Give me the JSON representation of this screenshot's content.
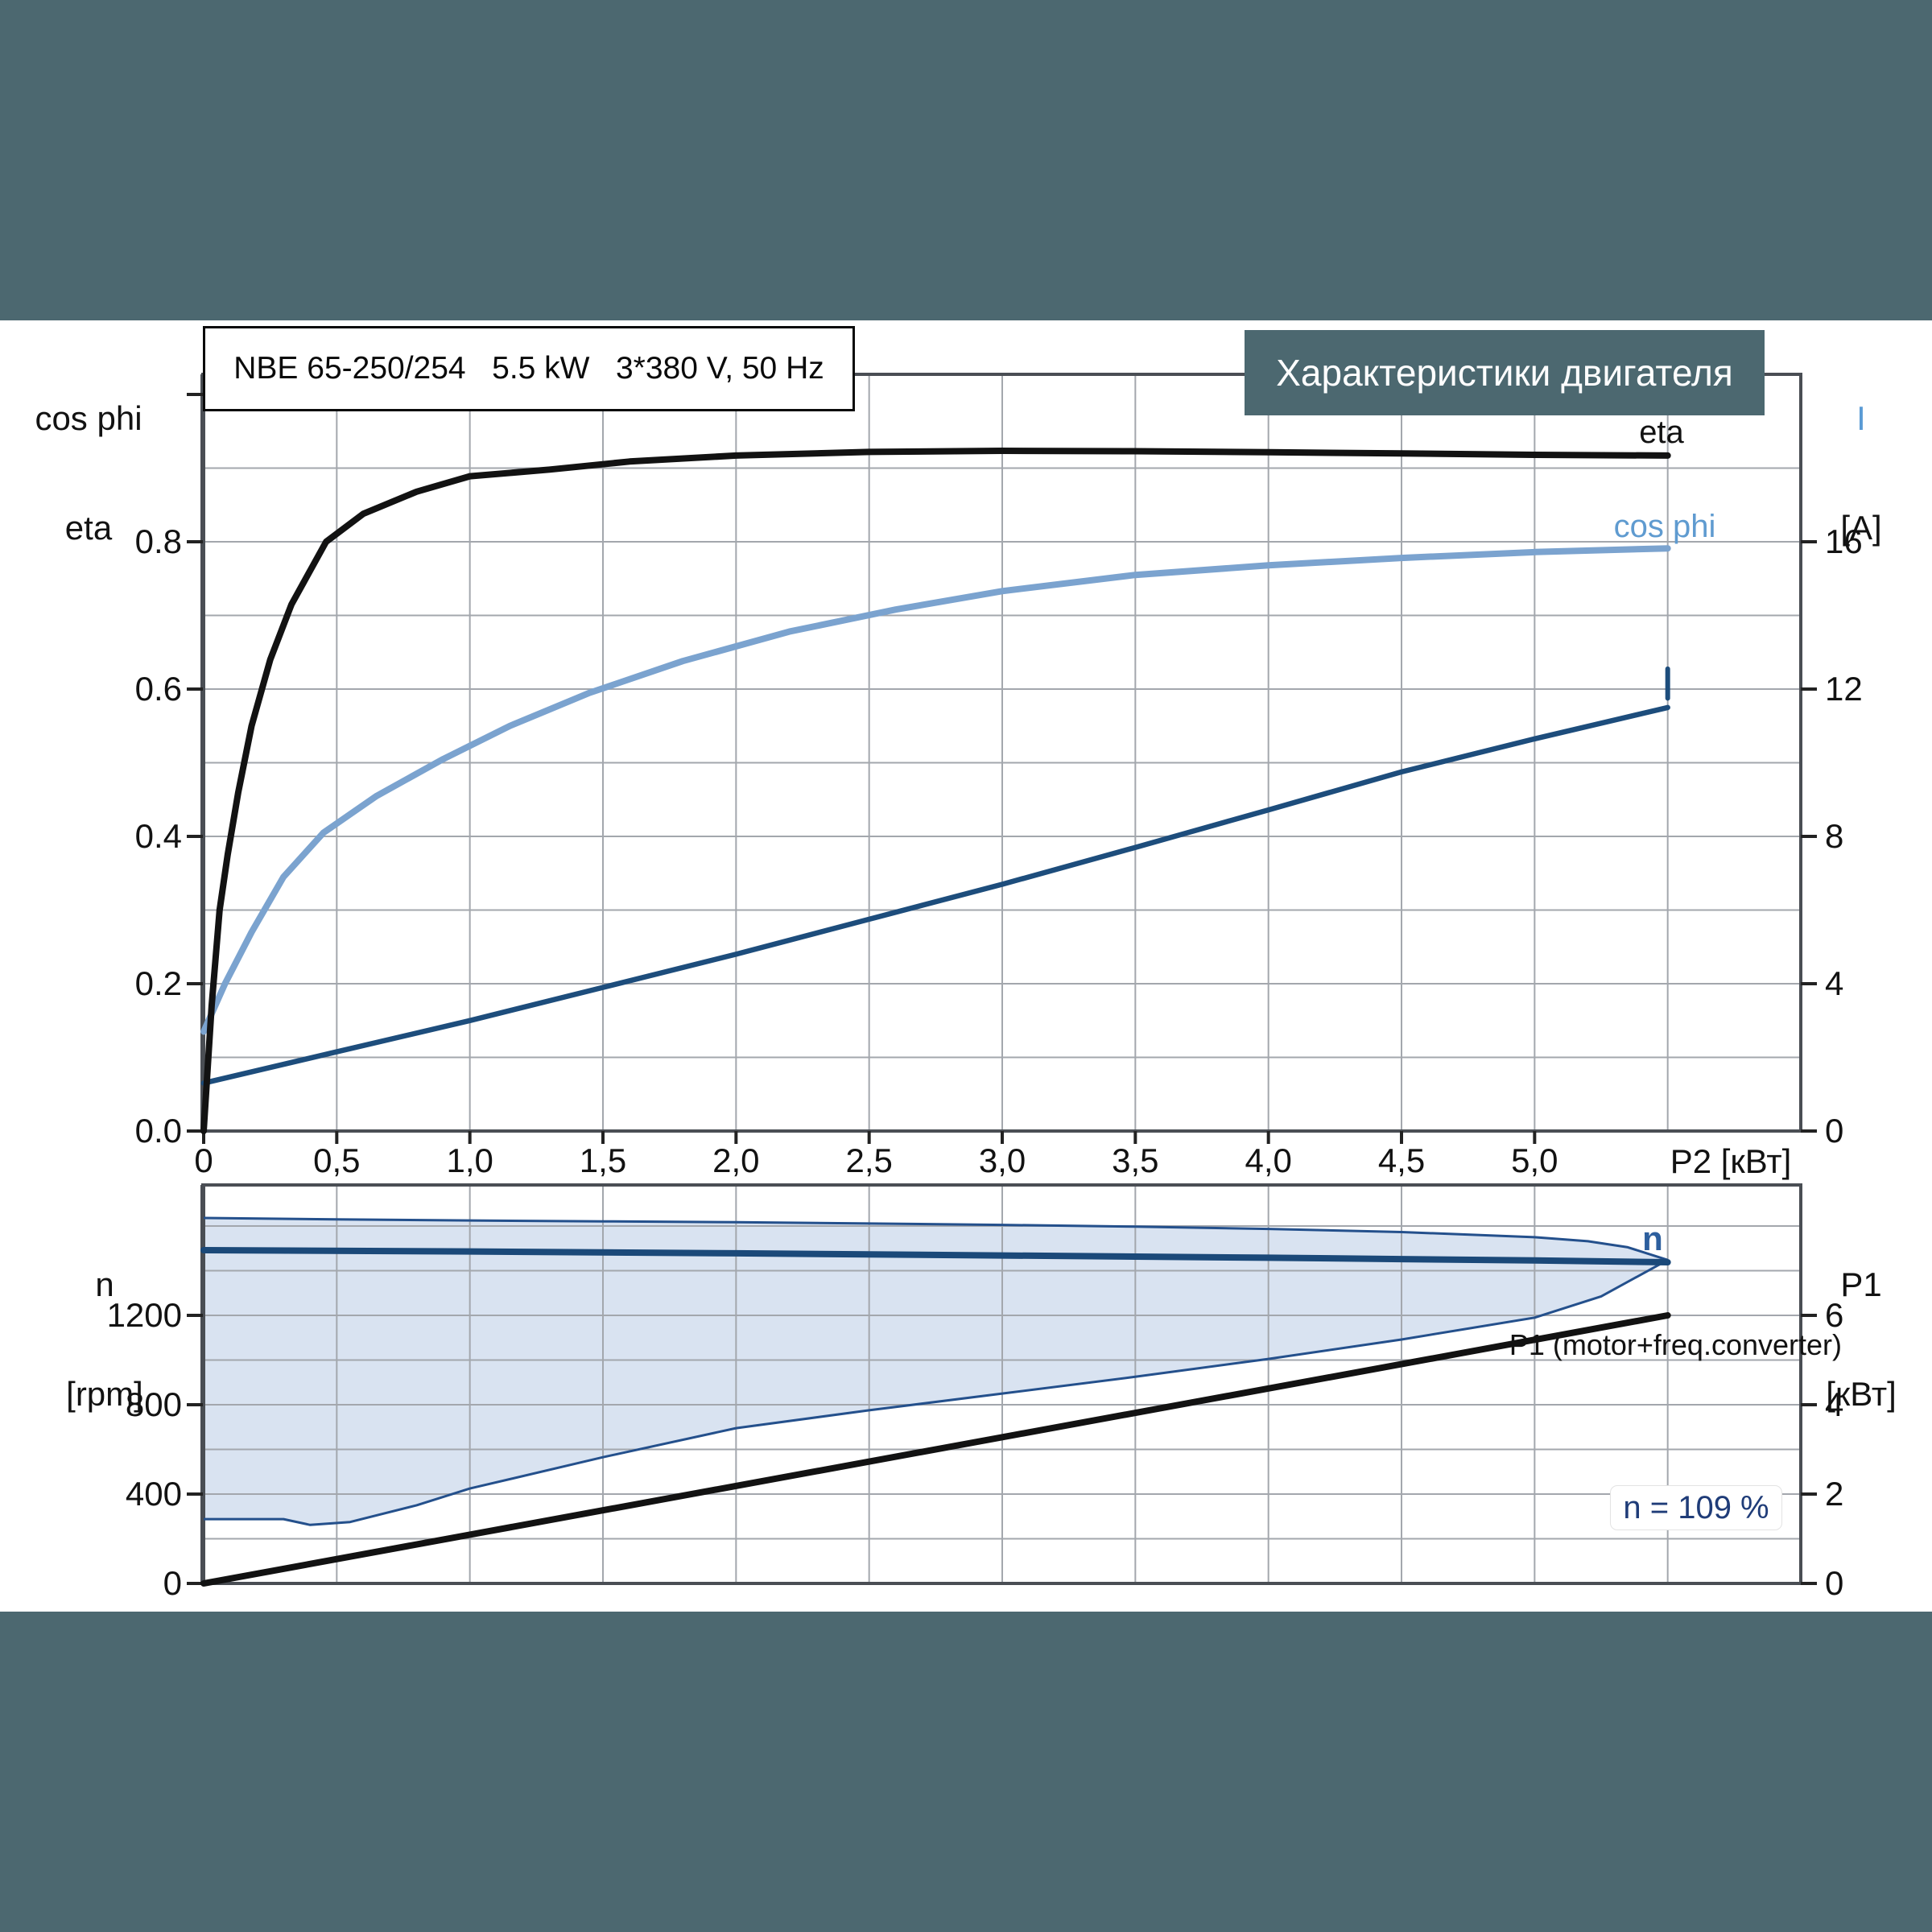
{
  "page": {
    "background": "#ffffff",
    "band_color": "#4C6870",
    "chart_title": "Характеристики двигателя",
    "model_title": "NBE 65-250/254   5.5 kW   3*380 V, 50 Hz"
  },
  "axes_headers": {
    "top_left_line1": "cos phi",
    "top_left_line2": "eta",
    "top_right_line1": "I",
    "top_right_line2": "[A]",
    "bottom_left_line1": "n",
    "bottom_left_line2": "[rpm]",
    "bottom_right_line1": "P1",
    "bottom_right_line2": "[кВт]",
    "x_axis_title": "P2 [кВт]"
  },
  "annotations": {
    "eta_label": "eta",
    "cos_phi_label": "cos phi",
    "n_label": "n",
    "p1_label": "P1 (motor+freq.converter)",
    "speed_note": "n = 109 %"
  },
  "colors": {
    "eta": "#121212",
    "cos_phi": "#7ba3cf",
    "cos_phi_label": "#5f9bd0",
    "current": "#1d4d7c",
    "speed": "#1b4979",
    "p1": "#121212",
    "band_fill": "#d9e3f1",
    "band_edge": "#24508c",
    "grid": "#a3a7ad",
    "frame": "#4a4e54",
    "tick": "#222222",
    "text": "#121212",
    "right_axis_i": "#5b9bd5",
    "n_label_color": "#2d5f9e",
    "note_text": "#1f3c78"
  },
  "chart_data": [
    {
      "type": "line",
      "name": "motor-efficiency-current-chart",
      "title": "Характеристики двигателя",
      "xlabel": "P2 [кВт]",
      "x_range": [
        0,
        6
      ],
      "x_grid_step": 0.5,
      "x_ticks": [
        [
          "0",
          0
        ],
        [
          "0,5",
          0.5
        ],
        [
          "1,0",
          1
        ],
        [
          "1,5",
          1.5
        ],
        [
          "2,0",
          2
        ],
        [
          "2,5",
          2.5
        ],
        [
          "3,0",
          3
        ],
        [
          "3,5",
          3.5
        ],
        [
          "4,0",
          4
        ],
        [
          "4,5",
          4.5
        ],
        [
          "5,0",
          5
        ]
      ],
      "y_left": {
        "range": [
          0,
          1.027
        ],
        "grid_step": 0.1,
        "ticks": [
          [
            "0.0",
            0
          ],
          [
            "0.2",
            0.2
          ],
          [
            "0.4",
            0.4
          ],
          [
            "0.6",
            0.6
          ],
          [
            "0.8",
            0.8
          ],
          [
            "",
            1.0
          ]
        ]
      },
      "y_right": {
        "label": "I [A]",
        "range": [
          0,
          16.43
        ],
        "ticks": [
          [
            "0",
            0
          ],
          [
            "4",
            4
          ],
          [
            "8",
            8
          ],
          [
            "12",
            12
          ],
          [
            "16",
            16
          ]
        ]
      },
      "series": [
        {
          "name": "I",
          "axis": "right",
          "unit": "A",
          "points": [
            [
              0,
              1.3
            ],
            [
              0.5,
              2.15
            ],
            [
              1,
              3.0
            ],
            [
              1.5,
              3.9
            ],
            [
              2,
              4.8
            ],
            [
              2.5,
              5.75
            ],
            [
              3,
              6.7
            ],
            [
              3.5,
              7.7
            ],
            [
              4,
              8.72
            ],
            [
              4.5,
              9.75
            ],
            [
              5,
              10.65
            ],
            [
              5.5,
              11.5
            ]
          ],
          "end_tick": [
            5.5,
            11.75,
            12.55
          ]
        },
        {
          "name": "cos phi",
          "axis": "left",
          "points": [
            [
              0,
              0.135
            ],
            [
              0.08,
              0.2
            ],
            [
              0.18,
              0.27
            ],
            [
              0.3,
              0.345
            ],
            [
              0.45,
              0.405
            ],
            [
              0.65,
              0.455
            ],
            [
              0.9,
              0.505
            ],
            [
              1.15,
              0.55
            ],
            [
              1.45,
              0.595
            ],
            [
              1.8,
              0.638
            ],
            [
              2.2,
              0.678
            ],
            [
              2.6,
              0.708
            ],
            [
              3.0,
              0.733
            ],
            [
              3.5,
              0.755
            ],
            [
              4.0,
              0.768
            ],
            [
              4.5,
              0.778
            ],
            [
              5.0,
              0.786
            ],
            [
              5.5,
              0.791
            ]
          ]
        },
        {
          "name": "eta",
          "axis": "left",
          "points": [
            [
              0,
              0
            ],
            [
              0.03,
              0.17
            ],
            [
              0.06,
              0.3
            ],
            [
              0.09,
              0.375
            ],
            [
              0.13,
              0.46
            ],
            [
              0.18,
              0.55
            ],
            [
              0.25,
              0.64
            ],
            [
              0.33,
              0.715
            ],
            [
              0.46,
              0.8
            ],
            [
              0.6,
              0.838
            ],
            [
              0.8,
              0.868
            ],
            [
              1.0,
              0.889
            ],
            [
              1.3,
              0.898
            ],
            [
              1.6,
              0.909
            ],
            [
              2.0,
              0.917
            ],
            [
              2.5,
              0.922
            ],
            [
              3.0,
              0.9235
            ],
            [
              3.5,
              0.923
            ],
            [
              4.0,
              0.9215
            ],
            [
              4.5,
              0.92
            ],
            [
              5.0,
              0.918
            ],
            [
              5.5,
              0.917
            ]
          ]
        }
      ]
    },
    {
      "type": "line",
      "name": "motor-speed-power-chart",
      "xlabel": "",
      "x_range": [
        0,
        6
      ],
      "x_grid_step": 0.5,
      "x_ticks": [],
      "y_left": {
        "label": "n [rpm]",
        "range": [
          0,
          1784
        ],
        "grid_step": 200,
        "ticks": [
          [
            "0",
            0
          ],
          [
            "400",
            400
          ],
          [
            "800",
            800
          ],
          [
            "1200",
            1200
          ]
        ]
      },
      "y_right": {
        "label": "P1 [кВт]",
        "range": [
          0,
          8.92
        ],
        "ticks": [
          [
            "0",
            0
          ],
          [
            "2",
            2
          ],
          [
            "4",
            4
          ],
          [
            "6",
            6
          ]
        ]
      },
      "operating_band": {
        "note": "n = 109 %",
        "top_rpm": [
          [
            0,
            1636
          ],
          [
            0.5,
            1630
          ],
          [
            1,
            1625
          ],
          [
            1.5,
            1621
          ],
          [
            2,
            1617
          ],
          [
            2.5,
            1611
          ],
          [
            3,
            1605
          ],
          [
            3.5,
            1597
          ],
          [
            4,
            1587
          ],
          [
            4.5,
            1573
          ],
          [
            5,
            1550
          ],
          [
            5.2,
            1532
          ],
          [
            5.35,
            1505
          ],
          [
            5.5,
            1448
          ]
        ],
        "bottom_rpm": [
          [
            0,
            288
          ],
          [
            0.3,
            288
          ],
          [
            0.4,
            262
          ],
          [
            0.55,
            275
          ],
          [
            0.8,
            350
          ],
          [
            1.0,
            425
          ],
          [
            1.5,
            565
          ],
          [
            2.0,
            695
          ],
          [
            2.5,
            775
          ],
          [
            3.0,
            850
          ],
          [
            3.5,
            925
          ],
          [
            4.0,
            1005
          ],
          [
            4.5,
            1092
          ],
          [
            5.0,
            1190
          ],
          [
            5.25,
            1285
          ],
          [
            5.5,
            1448
          ]
        ]
      },
      "series": [
        {
          "name": "n",
          "axis": "left",
          "unit": "rpm",
          "points": [
            [
              0,
              1492
            ],
            [
              1,
              1486
            ],
            [
              2,
              1478
            ],
            [
              3,
              1468
            ],
            [
              3.5,
              1463
            ],
            [
              4,
              1458
            ],
            [
              4.5,
              1452
            ],
            [
              5,
              1446
            ],
            [
              5.5,
              1438
            ]
          ]
        },
        {
          "name": "P1 (motor+freq.converter)",
          "axis": "right",
          "unit": "kW",
          "points": [
            [
              0,
              0
            ],
            [
              5.5,
              6.0
            ]
          ]
        }
      ]
    }
  ]
}
